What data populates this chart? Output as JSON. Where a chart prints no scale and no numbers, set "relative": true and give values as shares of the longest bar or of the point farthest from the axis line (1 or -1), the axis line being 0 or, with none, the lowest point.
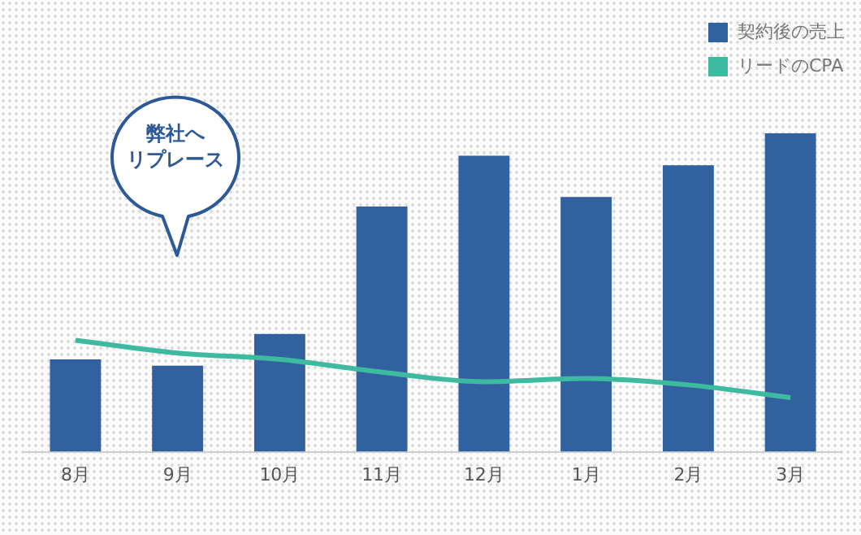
{
  "chart_data": {
    "type": "bar",
    "relative": true,
    "categories": [
      "8月",
      "9月",
      "10月",
      "11月",
      "12月",
      "1月",
      "2月",
      "3月"
    ],
    "series": [
      {
        "name": "契約後の売上",
        "color": "#31629f",
        "values": [
          0.29,
          0.27,
          0.37,
          0.77,
          0.93,
          0.8,
          0.9,
          1
        ]
      },
      {
        "name": "リードのCPA",
        "type": "line",
        "color": "#3dbaa0",
        "values": [
          0.35,
          0.31,
          0.29,
          0.25,
          0.22,
          0.23,
          0.21,
          0.17
        ]
      }
    ],
    "annotations": [
      "弊社へ",
      "リプレース"
    ],
    "legend": "top right",
    "grid": false,
    "marker": "none"
  }
}
